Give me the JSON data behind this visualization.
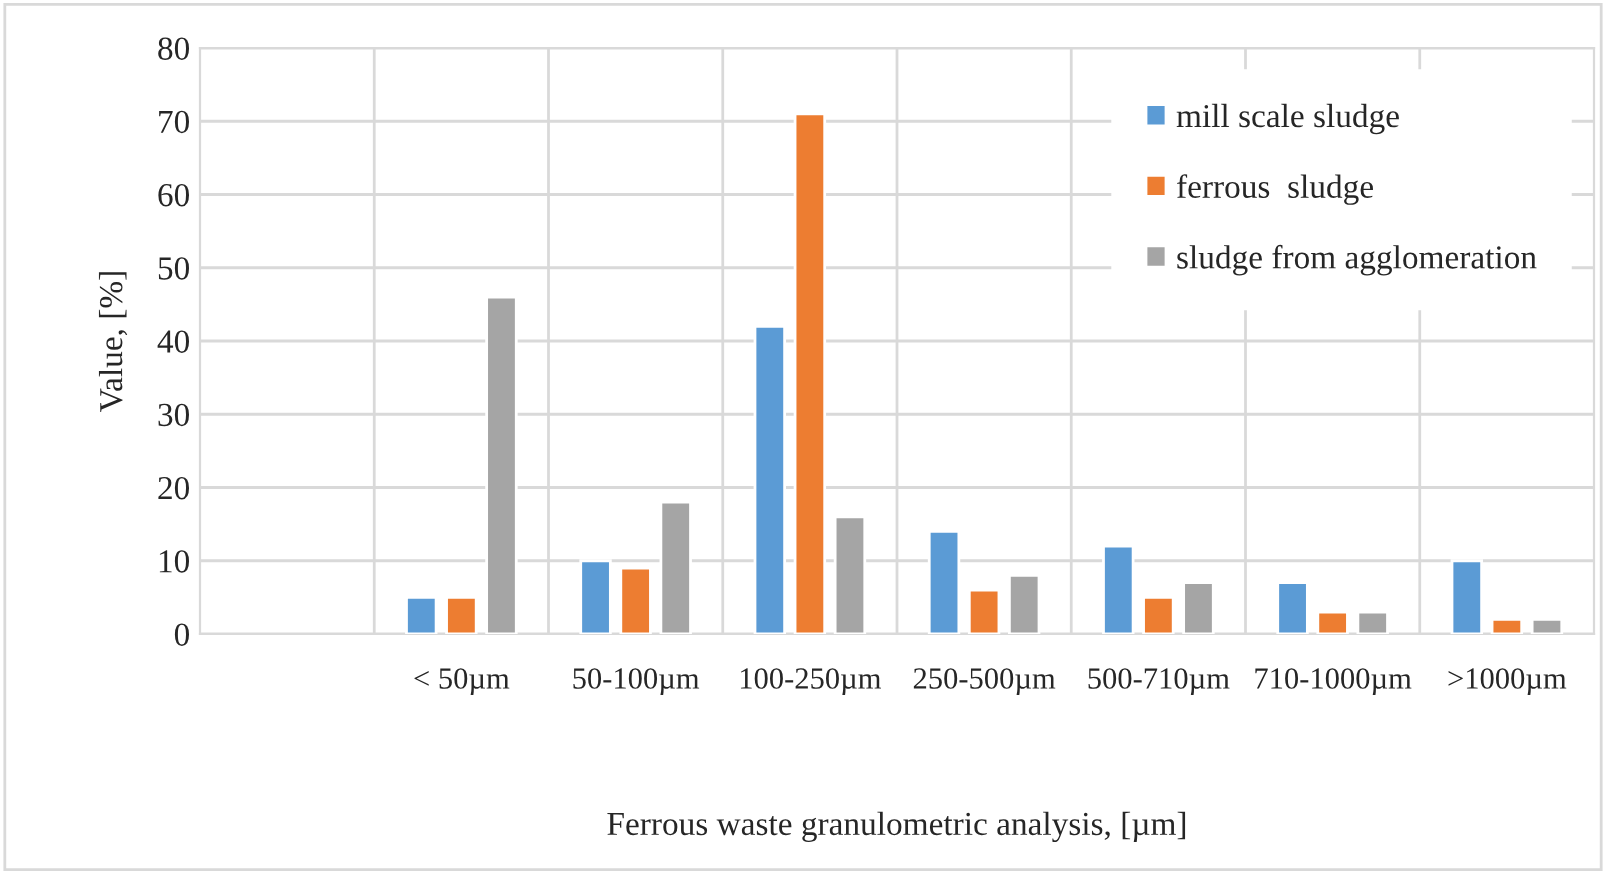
{
  "chart_data": {
    "type": "bar",
    "xlabel": "Ferrous waste granulometric analysis, [µm]",
    "ylabel": "Value, [%]",
    "categories": [
      null,
      "< 50µm",
      "50-100µm",
      "100-250µm",
      "250-500µm",
      "500-710µm",
      "710-1000µm",
      ">1000µm"
    ],
    "series": [
      {
        "name": "mill scale sludge",
        "color": "#5b9bd5",
        "values": [
          null,
          5,
          10,
          42,
          14,
          12,
          7,
          10
        ]
      },
      {
        "name": "ferrous  sludge",
        "color": "#ed7d31",
        "values": [
          null,
          5,
          9,
          71,
          6,
          5,
          3,
          2
        ]
      },
      {
        "name": "sludge from agglomeration",
        "color": "#a5a5a5",
        "values": [
          null,
          46,
          18,
          16,
          8,
          7,
          3,
          2
        ]
      }
    ],
    "ylim": [
      0,
      80
    ],
    "yticks": [
      0,
      10,
      20,
      30,
      40,
      50,
      60,
      70,
      80
    ],
    "grid": true,
    "legend": "top right"
  }
}
